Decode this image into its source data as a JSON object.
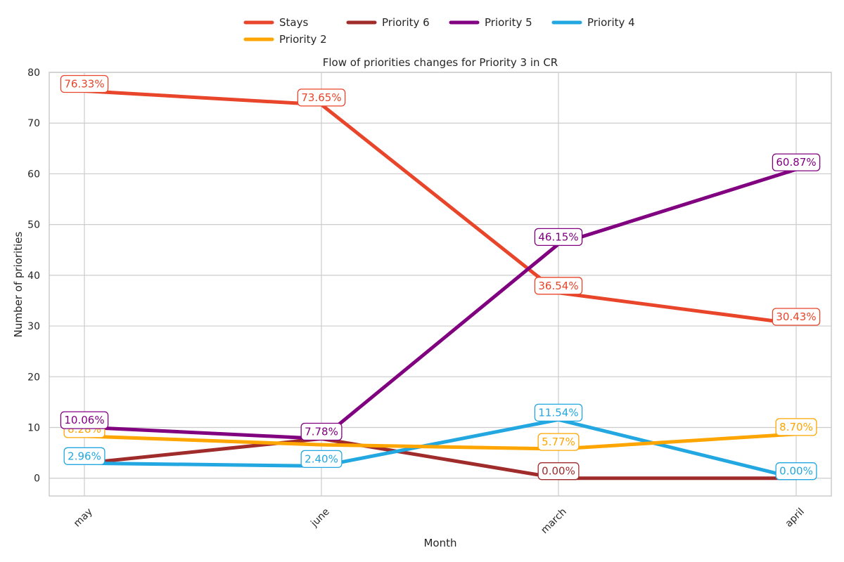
{
  "chart_data": {
    "type": "line",
    "title": "Flow of priorities changes for Priority 3 in CR",
    "xlabel": "Month",
    "ylabel": "Number of priorities",
    "categories": [
      "may",
      "june",
      "march",
      "april"
    ],
    "ylim": [
      -3.5,
      80
    ],
    "yticks": [
      "0",
      "10",
      "20",
      "30",
      "40",
      "50",
      "60",
      "70",
      "80"
    ],
    "grid": true,
    "legend_placement": "top-center, above plot",
    "series": [
      {
        "name": "Stays",
        "color": "#e8452a",
        "values": [
          76.33,
          73.65,
          36.54,
          30.43
        ],
        "labels": [
          "76.33%",
          "73.65%",
          "36.54%",
          "30.43%"
        ]
      },
      {
        "name": "Priority 2",
        "color": "#ffa500",
        "values": [
          8.28,
          6.59,
          5.77,
          8.7
        ],
        "labels": [
          "8.28%",
          "",
          "5.77%",
          "8.70%"
        ]
      },
      {
        "name": "Priority 6",
        "color": "#a02b2b",
        "values": [
          2.96,
          7.78,
          0.0,
          0.0
        ],
        "labels": [
          "",
          "",
          "0.00%",
          ""
        ]
      },
      {
        "name": "Priority 5",
        "color": "#800080",
        "values": [
          10.06,
          7.78,
          46.15,
          60.87
        ],
        "labels": [
          "10.06%",
          "7.78%",
          "46.15%",
          "60.87%"
        ]
      },
      {
        "name": "Priority 4",
        "color": "#22a7e1",
        "values": [
          2.96,
          2.4,
          11.54,
          0.0
        ],
        "labels": [
          "2.96%",
          "2.40%",
          "11.54%",
          "0.00%"
        ]
      }
    ],
    "legend_order": [
      "Stays",
      "Priority 6",
      "Priority 5",
      "Priority 4",
      "Priority 2"
    ]
  }
}
